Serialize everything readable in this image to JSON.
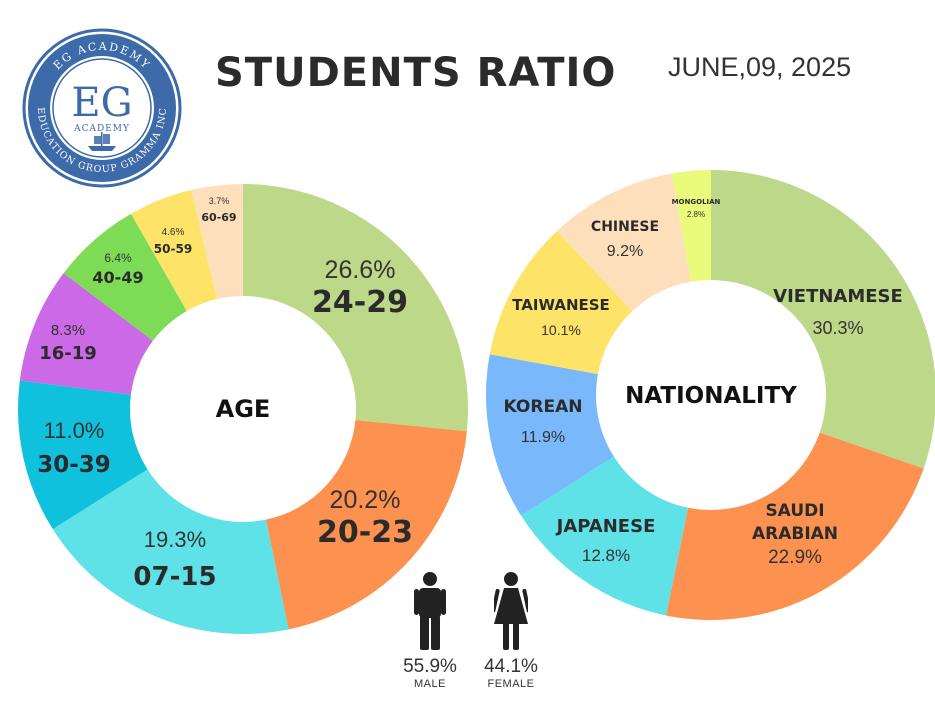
{
  "header": {
    "title": "STUDENTS RATIO",
    "date": "JUNE,09, 2025"
  },
  "logo": {
    "ring_top": "EG ACADEMY",
    "ring_bottom": "EDUCATION GROUP GRAMMA INC",
    "initials": "EG",
    "word": "ACADEMY",
    "color": "#3d6aa8"
  },
  "gender": {
    "male": {
      "percent": "55.9%",
      "label": "MALE",
      "icon": "male-person-icon"
    },
    "female": {
      "percent": "44.1%",
      "label": "FEMALE",
      "icon": "female-person-icon"
    }
  },
  "chart_data": [
    {
      "type": "pie",
      "center_label": "AGE",
      "slices": [
        {
          "label": "24-29",
          "value": 26.6,
          "text": "26.6%",
          "color": "#bdd889"
        },
        {
          "label": "20-23",
          "value": 20.2,
          "text": "20.2%",
          "color": "#fd9150"
        },
        {
          "label": "07-15",
          "value": 19.3,
          "text": "19.3%",
          "color": "#5fe1e8"
        },
        {
          "label": "30-39",
          "value": 11.0,
          "text": "11.0%",
          "color": "#10c1de"
        },
        {
          "label": "16-19",
          "value": 8.3,
          "text": "8.3%",
          "color": "#cc69e6"
        },
        {
          "label": "40-49",
          "value": 6.4,
          "text": "6.4%",
          "color": "#7ddb56"
        },
        {
          "label": "50-59",
          "value": 4.6,
          "text": "4.6%",
          "color": "#fde367"
        },
        {
          "label": "60-69",
          "value": 3.7,
          "text": "3.7%",
          "color": "#fde0bb"
        }
      ]
    },
    {
      "type": "pie",
      "center_label": "NATIONALITY",
      "slices": [
        {
          "label": "VIETNAMESE",
          "value": 30.3,
          "text": "30.3%",
          "color": "#bdd889"
        },
        {
          "label": "SAUDI\nARABIAN",
          "value": 22.9,
          "text": "22.9%",
          "color": "#fd9150"
        },
        {
          "label": "JAPANESE",
          "value": 12.8,
          "text": "12.8%",
          "color": "#5fe1e8"
        },
        {
          "label": "KOREAN",
          "value": 11.9,
          "text": "11.9%",
          "color": "#78b8fb"
        },
        {
          "label": "TAIWANESE",
          "value": 10.1,
          "text": "10.1%",
          "color": "#fde367"
        },
        {
          "label": "CHINESE",
          "value": 9.2,
          "text": "9.2%",
          "color": "#fde0bb"
        },
        {
          "label": "MONGOLIAN",
          "value": 2.8,
          "text": "2.8%",
          "color": "#eafa7b"
        }
      ]
    }
  ]
}
